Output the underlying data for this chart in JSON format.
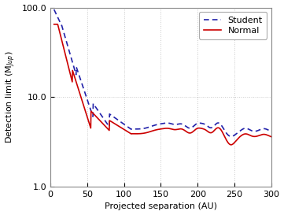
{
  "title": "",
  "xlabel": "Projected separation (AU)",
  "ylabel": "Detection limit (M$_{Jup}$)",
  "xlim": [
    0,
    300
  ],
  "ylim_log": [
    1.0,
    100.0
  ],
  "yticks": [
    1.0,
    10.0,
    100.0
  ],
  "ytick_labels": [
    "1.0",
    "10.0",
    "100.0"
  ],
  "xticks": [
    0,
    50,
    100,
    150,
    200,
    250,
    300
  ],
  "grid_color": "#c8c8c8",
  "normal_color": "#cc0000",
  "student_color": "#2222aa",
  "normal_label": "Normal",
  "student_label": "Student",
  "bg_color": "#ffffff",
  "legend_fontsize": 8,
  "axis_fontsize": 8,
  "tick_fontsize": 8
}
